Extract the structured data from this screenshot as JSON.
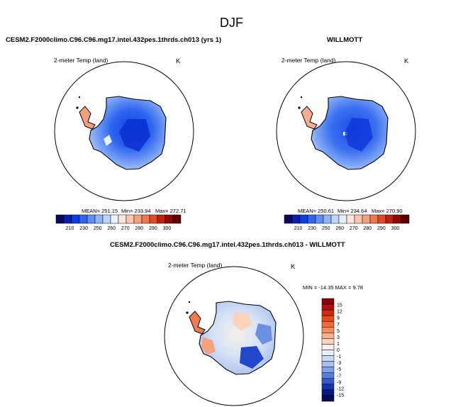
{
  "main_title": "DJF",
  "panels": [
    {
      "title": "CESM2.F2000climo.C96.C96.mg17.intel.432pes.1thrds.ch013 (yrs 1)",
      "variable": "2-meter Temp (land)",
      "units": "K",
      "mean_label": "MEAN= 251.15",
      "min_label": "Min= 233.94",
      "max_label": "Max= 272.71"
    },
    {
      "title": "WILLMOTT",
      "variable": "2-meter Temp (land)",
      "units": "K",
      "mean_label": "MEAN= 250.61",
      "min_label": "Min= 234.64",
      "max_label": "Max= 270.90"
    },
    {
      "title": "CESM2.F2000climo.C96.C96.mg17.intel.432pes.1thrds.ch013 - WILLMOTT",
      "variable": "2-meter Temp (land)",
      "units": "K",
      "minmax_label": "MIN = -14.35 MAX =   9.78"
    }
  ],
  "chart_data": [
    {
      "type": "heatmap",
      "projection": "south-polar stereographic",
      "title": "CESM2.F2000climo.C96.C96.mg17.intel.432pes.1thrds.ch013 (yrs 1)",
      "variable": "2-meter Temp (land)",
      "units": "K",
      "mean": 251.15,
      "min": 233.94,
      "max": 272.71,
      "colorbar": {
        "orientation": "horizontal",
        "tick_labels": [
          "210",
          "230",
          "250",
          "260",
          "270",
          "280",
          "290",
          "300"
        ],
        "colors": [
          "#08065e",
          "#0a1fb0",
          "#0d3fe0",
          "#2f66f0",
          "#5e8ff5",
          "#8fb4f8",
          "#bdd5fb",
          "#e6efff",
          "#fde7dc",
          "#fbc6ad",
          "#f5a07c",
          "#ee7750",
          "#e04a28",
          "#c02010",
          "#900a05",
          "#600000"
        ]
      }
    },
    {
      "type": "heatmap",
      "projection": "south-polar stereographic",
      "title": "WILLMOTT",
      "variable": "2-meter Temp (land)",
      "units": "K",
      "mean": 250.61,
      "min": 234.64,
      "max": 270.9,
      "colorbar": {
        "orientation": "horizontal",
        "tick_labels": [
          "210",
          "230",
          "250",
          "260",
          "270",
          "280",
          "290",
          "300"
        ],
        "colors": [
          "#08065e",
          "#0a1fb0",
          "#0d3fe0",
          "#2f66f0",
          "#5e8ff5",
          "#8fb4f8",
          "#bdd5fb",
          "#e6efff",
          "#fde7dc",
          "#fbc6ad",
          "#f5a07c",
          "#ee7750",
          "#e04a28",
          "#c02010",
          "#900a05",
          "#600000"
        ]
      }
    },
    {
      "type": "heatmap",
      "projection": "south-polar stereographic",
      "title": "CESM2.F2000climo.C96.C96.mg17.intel.432pes.1thrds.ch013 - WILLMOTT",
      "variable": "2-meter Temp (land)",
      "units": "K",
      "min": -14.35,
      "max": 9.78,
      "colorbar": {
        "orientation": "vertical",
        "tick_labels": [
          "15",
          "12",
          "9",
          "7",
          "5",
          "3",
          "1",
          "0",
          "-1",
          "-3",
          "-5",
          "-7",
          "-9",
          "-12",
          "-15"
        ],
        "colors": [
          "#8b0000",
          "#b01010",
          "#d02a10",
          "#e84a20",
          "#f26a3a",
          "#f68c5e",
          "#f9b08c",
          "#fcd3bd",
          "#fdeee6",
          "#e8f0fb",
          "#c8d8f6",
          "#a6bff0",
          "#7f9fe6",
          "#5a7ed8",
          "#3458c5",
          "#1632a8",
          "#081a80",
          "#040a55"
        ]
      }
    }
  ]
}
